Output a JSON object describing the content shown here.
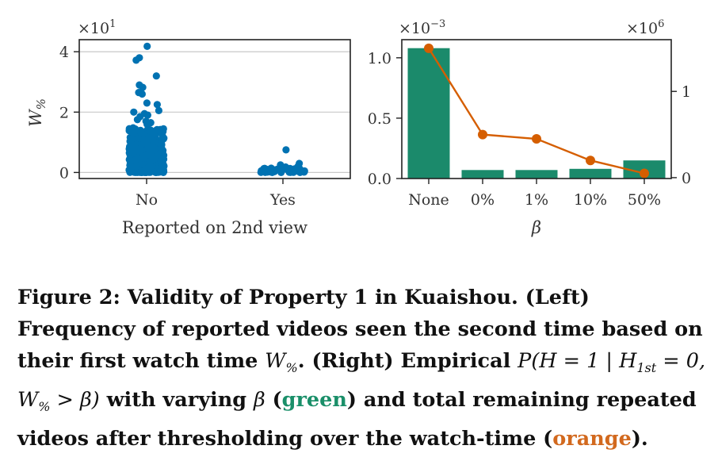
{
  "chart_data": [
    {
      "type": "scatter",
      "xlabel": "Reported on 2nd view",
      "ylabel": "W",
      "ylabel_sub": "%",
      "y_multiplier": "×10",
      "y_multiplier_exp": "1",
      "categories": [
        "No",
        "Yes"
      ],
      "ylim": [
        -0.2,
        4.4
      ],
      "yticks": [
        0,
        2,
        4
      ],
      "grid": "horizontal",
      "color": "#0072b2",
      "points": {
        "No": [
          4.18,
          3.8,
          3.72,
          3.2,
          2.9,
          2.82,
          2.65,
          2.6,
          2.3,
          2.25,
          2.05,
          2.0,
          1.95,
          1.9,
          1.85,
          1.75,
          1.7,
          1.65,
          1.6
        ],
        "Yes": [
          0.75,
          0.3,
          0.25,
          0.2,
          0.18,
          0.12,
          0.1,
          0.08,
          0.05,
          0.03
        ]
      },
      "dense_range": {
        "No": [
          0.0,
          1.5
        ],
        "Yes": [
          0.0,
          0.15
        ]
      }
    },
    {
      "type": "bar",
      "xlabel": "β",
      "categories": [
        "None",
        "0%",
        "1%",
        "10%",
        "50%"
      ],
      "values": [
        1.08,
        0.07,
        0.07,
        0.08,
        0.15
      ],
      "y_multiplier": "×10",
      "y_multiplier_exp": "−3",
      "ylim": [
        0,
        1.15
      ],
      "yticks": [
        "0.0",
        "0.5",
        "1.0"
      ],
      "bar_color": "#1b8a6b",
      "line_series": {
        "values": [
          1.5,
          0.5,
          0.45,
          0.2,
          0.05
        ],
        "color": "#d55e00",
        "y2lim": [
          -0.01,
          1.6
        ],
        "y2ticks": [
          "0",
          "1"
        ],
        "y_multiplier": "×10",
        "y_multiplier_exp": "6"
      }
    }
  ],
  "caption": {
    "label": "Figure 2: Validity of Property 1 in Kuaishou. (Left) Frequency of reported videos seen the second time based on their first watch time ",
    "w_symbol": "W",
    "w_sub": "%",
    "part2": ". (Right) Empirical ",
    "prob_expr": "P(H = 1 | H",
    "prob_sub": "1st",
    "prob_expr2": " = 0, W",
    "prob_sub2": "%",
    "prob_expr3": " > β)",
    "part3": " with varying ",
    "beta": "β",
    "part4": " (",
    "green_word": "green",
    "part5": ") and total remaining repeated videos after thresholding over the watch-time (",
    "orange_word": "orange",
    "part6": ")."
  }
}
